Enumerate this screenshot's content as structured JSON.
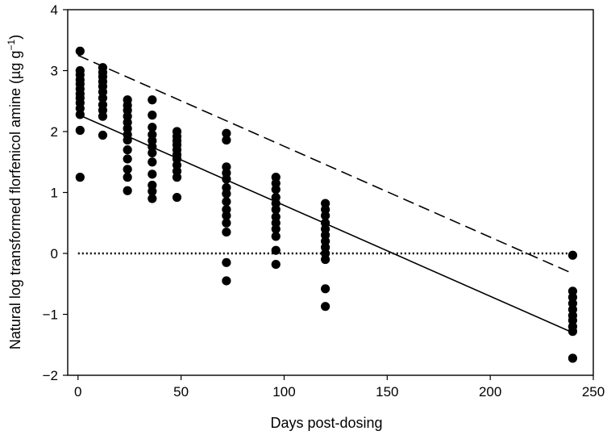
{
  "chart_data": {
    "type": "scatter",
    "xlabel": "Days post-dosing",
    "ylabel_main": "Natural log transformed florfenicol amine (µg g",
    "ylabel_sup": "−1",
    "ylabel_close": ")",
    "xlim": [
      -5,
      250
    ],
    "ylim": [
      -2,
      4
    ],
    "x_ticks": [
      0,
      50,
      100,
      150,
      200,
      250
    ],
    "y_ticks": [
      -2,
      -1,
      0,
      1,
      2,
      3,
      4
    ],
    "x_tick_labels": [
      "0",
      "50",
      "100",
      "150",
      "200",
      "250"
    ],
    "y_tick_labels": [
      "−2",
      "−1",
      "0",
      "1",
      "2",
      "3",
      "4"
    ],
    "grid": false,
    "series": [
      {
        "style": "points",
        "color": "#000000",
        "points": [
          [
            1,
            3.32
          ],
          [
            1,
            3.0
          ],
          [
            1,
            2.93
          ],
          [
            1,
            2.85
          ],
          [
            1,
            2.78
          ],
          [
            1,
            2.7
          ],
          [
            1,
            2.62
          ],
          [
            1,
            2.55
          ],
          [
            1,
            2.47
          ],
          [
            1,
            2.38
          ],
          [
            1,
            2.28
          ],
          [
            1,
            2.02
          ],
          [
            1,
            1.25
          ],
          [
            12,
            3.05
          ],
          [
            12,
            2.97
          ],
          [
            12,
            2.9
          ],
          [
            12,
            2.82
          ],
          [
            12,
            2.74
          ],
          [
            12,
            2.65
          ],
          [
            12,
            2.55
          ],
          [
            12,
            2.44
          ],
          [
            12,
            2.35
          ],
          [
            12,
            2.25
          ],
          [
            12,
            1.94
          ],
          [
            24,
            2.52
          ],
          [
            24,
            2.43
          ],
          [
            24,
            2.35
          ],
          [
            24,
            2.25
          ],
          [
            24,
            2.15
          ],
          [
            24,
            2.05
          ],
          [
            24,
            1.95
          ],
          [
            24,
            1.86
          ],
          [
            24,
            1.7
          ],
          [
            24,
            1.55
          ],
          [
            24,
            1.38
          ],
          [
            24,
            1.25
          ],
          [
            24,
            1.03
          ],
          [
            36,
            2.52
          ],
          [
            36,
            2.27
          ],
          [
            36,
            2.07
          ],
          [
            36,
            1.95
          ],
          [
            36,
            1.85
          ],
          [
            36,
            1.75
          ],
          [
            36,
            1.65
          ],
          [
            36,
            1.5
          ],
          [
            36,
            1.3
          ],
          [
            36,
            1.12
          ],
          [
            36,
            1.02
          ],
          [
            36,
            0.9
          ],
          [
            48,
            2.0
          ],
          [
            48,
            1.92
          ],
          [
            48,
            1.85
          ],
          [
            48,
            1.78
          ],
          [
            48,
            1.7
          ],
          [
            48,
            1.62
          ],
          [
            48,
            1.55
          ],
          [
            48,
            1.45
          ],
          [
            48,
            1.35
          ],
          [
            48,
            1.25
          ],
          [
            48,
            0.92
          ],
          [
            72,
            1.97
          ],
          [
            72,
            1.86
          ],
          [
            72,
            1.42
          ],
          [
            72,
            1.32
          ],
          [
            72,
            1.22
          ],
          [
            72,
            1.08
          ],
          [
            72,
            0.98
          ],
          [
            72,
            0.85
          ],
          [
            72,
            0.72
          ],
          [
            72,
            0.62
          ],
          [
            72,
            0.5
          ],
          [
            72,
            0.35
          ],
          [
            72,
            -0.15
          ],
          [
            72,
            -0.45
          ],
          [
            96,
            1.25
          ],
          [
            96,
            1.15
          ],
          [
            96,
            1.05
          ],
          [
            96,
            0.92
          ],
          [
            96,
            0.82
          ],
          [
            96,
            0.72
          ],
          [
            96,
            0.6
          ],
          [
            96,
            0.5
          ],
          [
            96,
            0.4
          ],
          [
            96,
            0.28
          ],
          [
            96,
            0.05
          ],
          [
            96,
            -0.18
          ],
          [
            120,
            0.82
          ],
          [
            120,
            0.72
          ],
          [
            120,
            0.62
          ],
          [
            120,
            0.5
          ],
          [
            120,
            0.4
          ],
          [
            120,
            0.3
          ],
          [
            120,
            0.2
          ],
          [
            120,
            0.1
          ],
          [
            120,
            0.0
          ],
          [
            120,
            -0.1
          ],
          [
            120,
            -0.58
          ],
          [
            120,
            -0.87
          ],
          [
            240,
            -0.03
          ],
          [
            240,
            -0.62
          ],
          [
            240,
            -0.72
          ],
          [
            240,
            -0.82
          ],
          [
            240,
            -0.92
          ],
          [
            240,
            -1.02
          ],
          [
            240,
            -1.1
          ],
          [
            240,
            -1.2
          ],
          [
            240,
            -1.28
          ],
          [
            240,
            -1.72
          ]
        ]
      },
      {
        "style": "solid",
        "color": "#000000",
        "points": [
          [
            0,
            2.28
          ],
          [
            240,
            -1.3
          ]
        ]
      },
      {
        "style": "dashed",
        "color": "#000000",
        "points": [
          [
            0,
            3.25
          ],
          [
            240,
            -0.33
          ]
        ]
      },
      {
        "style": "dotted",
        "color": "#000000",
        "points": [
          [
            0,
            0
          ],
          [
            240,
            0
          ]
        ]
      }
    ]
  }
}
